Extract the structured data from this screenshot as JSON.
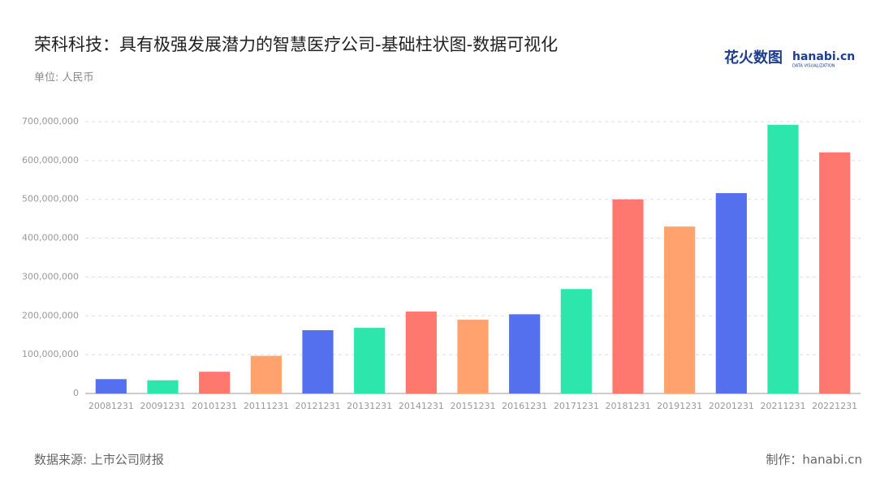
{
  "chart_data": {
    "type": "bar",
    "title": "荣科科技：具有极强发展潜力的智慧医疗公司-基础柱状图-数据可视化",
    "subtitle": "单位: 人民币",
    "source": "数据来源: 上市公司财报",
    "credit": "制作：hanabi.cn",
    "logo": {
      "text": "花火数图",
      "brand": "hanabi.cn",
      "tagline": "DATA VISUALIZATION"
    },
    "categories": [
      "20081231",
      "20091231",
      "20101231",
      "20111231",
      "20121231",
      "20131231",
      "20141231",
      "20151231",
      "20161231",
      "20171231",
      "20181231",
      "20191231",
      "20201231",
      "20211231",
      "20221231"
    ],
    "values": [
      37000000,
      34000000,
      56000000,
      97000000,
      163000000,
      169000000,
      211000000,
      190000000,
      204000000,
      269000000,
      500000000,
      430000000,
      516000000,
      692000000,
      621000000
    ],
    "colors": [
      "#5470ee",
      "#2de6ac",
      "#ff7870",
      "#ffa26e",
      "#5470ee",
      "#2de6ac",
      "#ff7870",
      "#ffa26e",
      "#5470ee",
      "#2de6ac",
      "#ff7870",
      "#ffa26e",
      "#5470ee",
      "#2de6ac",
      "#ff7870"
    ],
    "ylim": [
      0,
      700000000
    ],
    "yticks": [
      0,
      {
        "value": 100000000,
        "label": "100,000,000"
      },
      {
        "value": 200000000,
        "label": "200,000,000"
      },
      {
        "value": 300000000,
        "label": "300,000,000"
      },
      {
        "value": 400000000,
        "label": "400,000,000"
      },
      {
        "value": 500000000,
        "label": "500,000,000"
      },
      {
        "value": 600000000,
        "label": "600,000,000"
      },
      {
        "value": 700000000,
        "label": "700,000,000"
      }
    ],
    "grid": true
  }
}
